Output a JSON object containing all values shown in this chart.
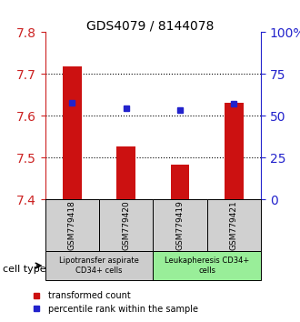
{
  "title": "GDS4079 / 8144078",
  "samples": [
    "GSM779418",
    "GSM779420",
    "GSM779419",
    "GSM779421"
  ],
  "red_values": [
    7.718,
    7.528,
    7.484,
    7.632
  ],
  "blue_values": [
    7.632,
    7.618,
    7.615,
    7.63
  ],
  "y_min": 7.4,
  "y_max": 7.8,
  "y_ticks": [
    7.4,
    7.5,
    7.6,
    7.7,
    7.8
  ],
  "y2_ticks": [
    0,
    25,
    50,
    75,
    100
  ],
  "y2_labels": [
    "0",
    "25",
    "50",
    "75",
    "100%"
  ],
  "bar_color": "#cc1111",
  "dot_color": "#2222cc",
  "cell_type_groups": [
    {
      "label": "Lipotransfer aspirate\nCD34+ cells",
      "indices": [
        0,
        1
      ],
      "color": "#cccccc"
    },
    {
      "label": "Leukapheresis CD34+\ncells",
      "indices": [
        2,
        3
      ],
      "color": "#99ee99"
    }
  ],
  "legend_red": "transformed count",
  "legend_blue": "percentile rank within the sample",
  "cell_type_label": "cell type",
  "background_color": "#ffffff",
  "plot_bg": "#ffffff",
  "grid_color": "#000000",
  "left_axis_color": "#cc2222",
  "right_axis_color": "#2222cc"
}
